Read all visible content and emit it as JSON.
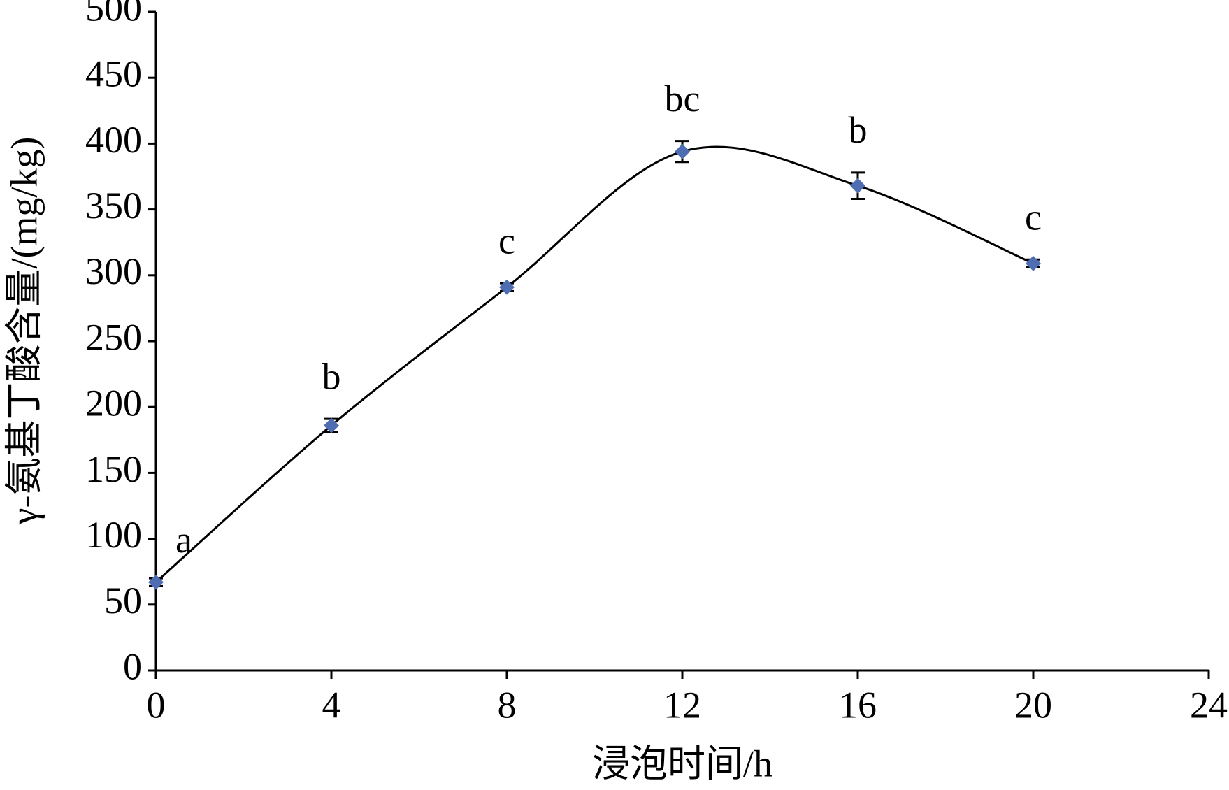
{
  "chart_data": {
    "type": "line",
    "x_label": "浸泡时间/h",
    "y_label": "γ-氨基丁酸含量/(mg/kg)",
    "x": [
      0,
      4,
      8,
      12,
      16,
      20
    ],
    "series": [
      {
        "color": "#4f6db3",
        "line_color": "#000000",
        "values": [
          67,
          186,
          291,
          394,
          368,
          309
        ],
        "errors": [
          3,
          5,
          3,
          8,
          10,
          3
        ],
        "annotations": [
          "a",
          "b",
          "c",
          "bc",
          "b",
          "c"
        ]
      }
    ],
    "xlim": [
      0,
      24
    ],
    "xticks": [
      0,
      4,
      8,
      12,
      16,
      20,
      24
    ],
    "ylim": [
      0,
      500
    ],
    "yticks": [
      0,
      50,
      100,
      150,
      200,
      250,
      300,
      350,
      400,
      450,
      500
    ],
    "smooth": true,
    "grid": false
  }
}
